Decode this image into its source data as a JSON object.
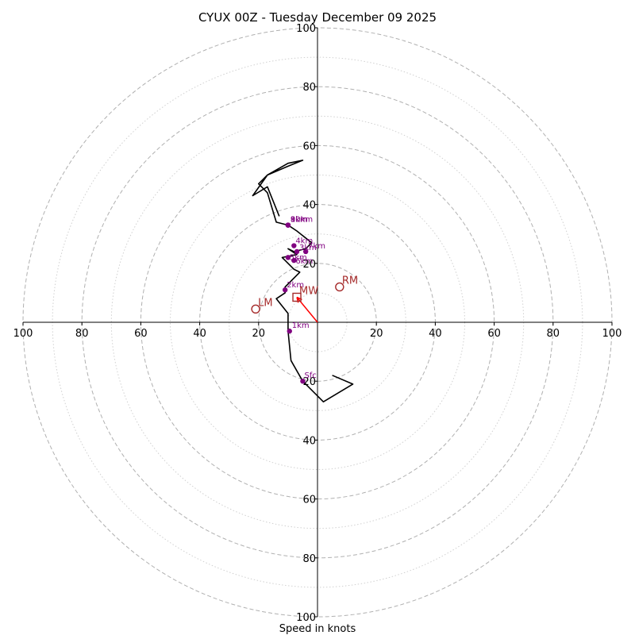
{
  "chart_data": {
    "type": "hodograph",
    "title": "CYUX 00Z - Tuesday December 09 2025",
    "xlabel": "Speed in knots",
    "units": "knots",
    "max_range": 100,
    "rings_major": [
      20,
      40,
      60,
      80,
      100
    ],
    "rings_minor": [
      10,
      30,
      50,
      70,
      90
    ],
    "tick_labels": {
      "left": [
        "100",
        "80",
        "60",
        "40",
        "20"
      ],
      "right": [
        "20",
        "40",
        "60",
        "80",
        "100"
      ],
      "top": [
        "20",
        "40",
        "60",
        "80",
        "100"
      ],
      "bottom": [
        "20",
        "40",
        "60",
        "80",
        "100"
      ]
    },
    "tick_values": [
      20,
      40,
      60,
      80,
      100
    ],
    "hodograph_trace": [
      [
        5,
        -18
      ],
      [
        12,
        -21
      ],
      [
        2,
        -27
      ],
      [
        -5,
        -20
      ],
      [
        -9,
        -13
      ],
      [
        -10,
        -3
      ],
      [
        -10,
        3
      ],
      [
        -14,
        8
      ],
      [
        -11,
        10
      ],
      [
        -11,
        12
      ],
      [
        -6,
        17
      ],
      [
        -8,
        18
      ],
      [
        -11,
        21
      ],
      [
        -12,
        22
      ],
      [
        -7,
        23
      ],
      [
        -10,
        25
      ],
      [
        -8,
        24
      ],
      [
        -4,
        25
      ],
      [
        -2,
        27
      ],
      [
        -7,
        31
      ],
      [
        -10,
        33
      ],
      [
        -14,
        34
      ],
      [
        -17,
        44
      ],
      [
        -20,
        47
      ],
      [
        -17,
        50
      ],
      [
        -10,
        53
      ],
      [
        -5,
        55
      ],
      [
        -10,
        54
      ],
      [
        -17,
        50
      ],
      [
        -22,
        43
      ],
      [
        -17,
        46
      ],
      [
        -13,
        36
      ]
    ],
    "height_markers": [
      {
        "label": "Sfc",
        "u": -5,
        "v": -20
      },
      {
        "label": "1km",
        "u": -9.5,
        "v": -3
      },
      {
        "label": "2km",
        "u": -11,
        "v": 11
      },
      {
        "label": "3km",
        "u": -7,
        "v": 24
      },
      {
        "label": "4km",
        "u": -8,
        "v": 26
      },
      {
        "label": "5km",
        "u": -10,
        "v": 22
      },
      {
        "label": "6km",
        "u": -8,
        "v": 21
      },
      {
        "label": "7km",
        "u": -4,
        "v": 24
      },
      {
        "label": "8km",
        "u": -10,
        "v": 33
      },
      {
        "label": "9km",
        "u": -10,
        "v": 33
      },
      {
        "label": "10km",
        "u": -10,
        "v": 33
      }
    ],
    "storm_motion": {
      "RM": {
        "label": "RM",
        "u": 7.5,
        "v": 12
      },
      "LM": {
        "label": "LM",
        "u": -21,
        "v": 4.5
      },
      "MW": {
        "label": "MW",
        "u": -7,
        "v": 8.5
      }
    },
    "mean_wind_vector": {
      "u": -7,
      "v": 8.5
    },
    "colors": {
      "trace": "#000000",
      "markers": "#800080",
      "storm_motion": "#a52a2a",
      "vector": "#ff0000",
      "major_ring": "#b0b0b0",
      "minor_ring": "#d0d0d0"
    }
  }
}
